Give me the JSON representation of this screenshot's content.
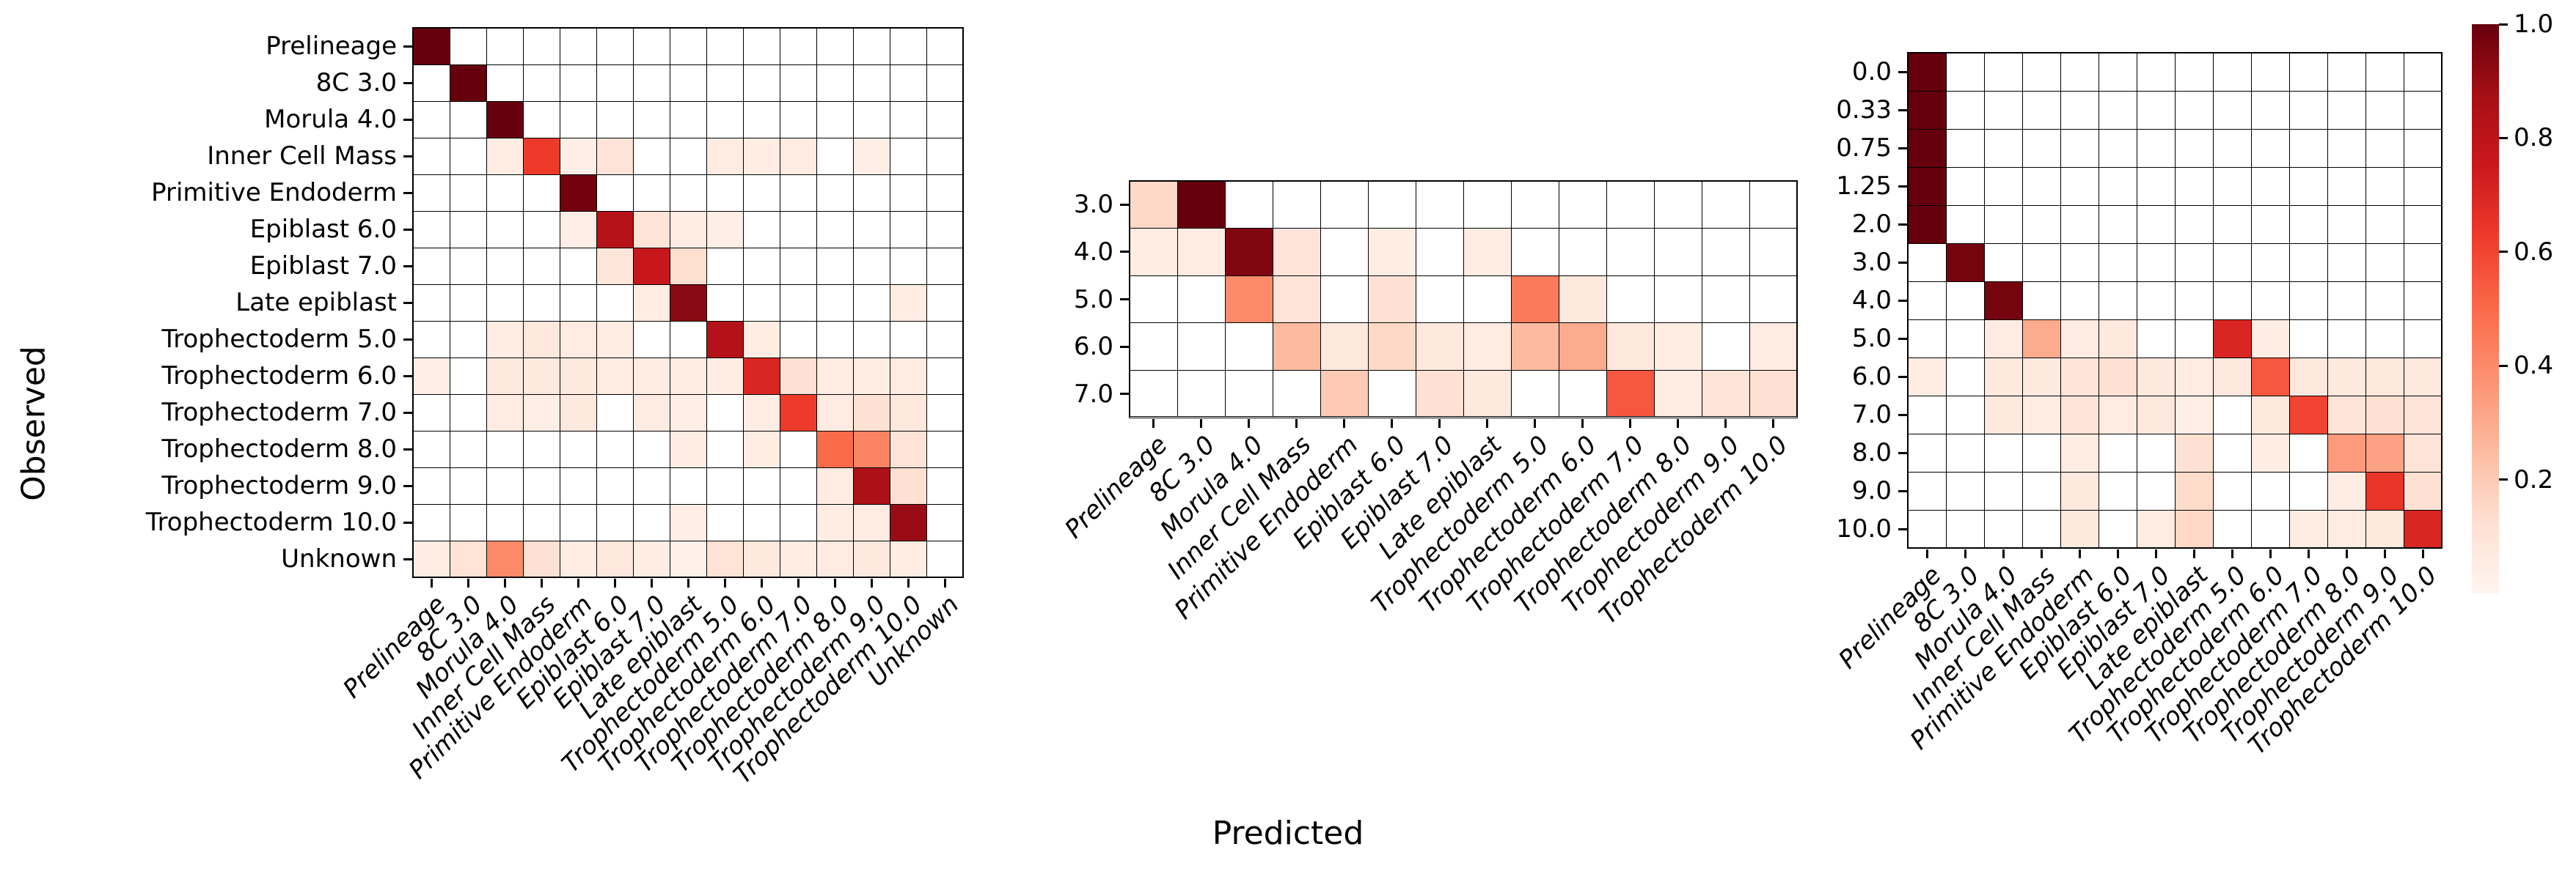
{
  "figure": {
    "xlabel": "Predicted",
    "ylabel": "Observed",
    "background": "#ffffff"
  },
  "colormap": {
    "name": "Reds",
    "zero_color": "#ffffff",
    "stops": [
      {
        "v": 0.0,
        "color": "#fff5f0"
      },
      {
        "v": 0.125,
        "color": "#fee0d2"
      },
      {
        "v": 0.25,
        "color": "#fcbba1"
      },
      {
        "v": 0.375,
        "color": "#fc9272"
      },
      {
        "v": 0.5,
        "color": "#fb6a4a"
      },
      {
        "v": 0.625,
        "color": "#ef3b2c"
      },
      {
        "v": 0.75,
        "color": "#cb181d"
      },
      {
        "v": 0.875,
        "color": "#a50f15"
      },
      {
        "v": 1.0,
        "color": "#67000d"
      }
    ]
  },
  "colorbar": {
    "vmin": 0,
    "vmax": 1,
    "tick_labels": [
      "1.0",
      "0.8",
      "0.6",
      "0.4",
      "0.2"
    ],
    "tick_values": [
      1.0,
      0.8,
      0.6,
      0.4,
      0.2
    ]
  },
  "chart_data": [
    {
      "type": "heatmap",
      "name": "confusion-matrix-all-lineages",
      "x_labels": [
        "Prelineage",
        "8C 3.0",
        "Morula 4.0",
        "Inner Cell Mass",
        "Primitive Endoderm",
        "Epiblast 6.0",
        "Epiblast 7.0",
        "Late epiblast",
        "Trophectoderm 5.0",
        "Trophectoderm 6.0",
        "Trophectoderm 7.0",
        "Trophectoderm 8.0",
        "Trophectoderm 9.0",
        "Trophectoderm 10.0",
        "Unknown"
      ],
      "y_labels": [
        "Prelineage",
        "8C 3.0",
        "Morula 4.0",
        "Inner Cell Mass",
        "Primitive Endoderm",
        "Epiblast 6.0",
        "Epiblast 7.0",
        "Late epiblast",
        "Trophectoderm 5.0",
        "Trophectoderm 6.0",
        "Trophectoderm 7.0",
        "Trophectoderm 8.0",
        "Trophectoderm 9.0",
        "Trophectoderm 10.0",
        "Unknown"
      ],
      "values": [
        [
          1,
          0,
          0,
          0,
          0,
          0,
          0,
          0,
          0,
          0,
          0,
          0,
          0,
          0,
          0
        ],
        [
          0,
          1,
          0,
          0,
          0,
          0,
          0,
          0,
          0,
          0,
          0,
          0,
          0,
          0,
          0
        ],
        [
          0,
          0,
          1,
          0,
          0,
          0,
          0,
          0,
          0,
          0,
          0,
          0,
          0,
          0,
          0
        ],
        [
          0,
          0,
          0.05,
          0.63,
          0.04,
          0.1,
          0,
          0,
          0.06,
          0.05,
          0.06,
          0,
          0.04,
          0,
          0
        ],
        [
          0,
          0,
          0,
          0,
          0.98,
          0,
          0,
          0,
          0,
          0,
          0,
          0,
          0,
          0,
          0
        ],
        [
          0,
          0,
          0,
          0,
          0.04,
          0.82,
          0.11,
          0.05,
          0.04,
          0,
          0,
          0,
          0,
          0,
          0
        ],
        [
          0,
          0,
          0,
          0,
          0,
          0.09,
          0.77,
          0.13,
          0,
          0,
          0,
          0,
          0,
          0,
          0
        ],
        [
          0,
          0,
          0,
          0,
          0,
          0,
          0.05,
          0.93,
          0,
          0,
          0,
          0,
          0,
          0.05,
          0
        ],
        [
          0,
          0,
          0.05,
          0.08,
          0.06,
          0.05,
          0,
          0,
          0.83,
          0.05,
          0,
          0,
          0,
          0,
          0
        ],
        [
          0.04,
          0,
          0.07,
          0.07,
          0.07,
          0.06,
          0.06,
          0.05,
          0.05,
          0.7,
          0.12,
          0.06,
          0.05,
          0.06,
          0
        ],
        [
          0,
          0,
          0.06,
          0.04,
          0.07,
          0,
          0.06,
          0.04,
          0,
          0.05,
          0.63,
          0.06,
          0.12,
          0.08,
          0
        ],
        [
          0,
          0,
          0,
          0,
          0,
          0,
          0,
          0.05,
          0,
          0.05,
          0,
          0.5,
          0.42,
          0.1,
          0
        ],
        [
          0,
          0,
          0,
          0,
          0,
          0,
          0,
          0,
          0,
          0,
          0,
          0.06,
          0.85,
          0.12,
          0
        ],
        [
          0,
          0,
          0,
          0,
          0,
          0,
          0,
          0.04,
          0,
          0,
          0,
          0.05,
          0.06,
          0.9,
          0
        ],
        [
          0.05,
          0.11,
          0.4,
          0.12,
          0.05,
          0.08,
          0.05,
          0.03,
          0.11,
          0.07,
          0.05,
          0.06,
          0.07,
          0.05,
          0
        ]
      ]
    },
    {
      "type": "heatmap",
      "name": "confusion-matrix-stage",
      "x_labels": [
        "Prelineage",
        "8C 3.0",
        "Morula 4.0",
        "Inner Cell Mass",
        "Primitive Endoderm",
        "Epiblast 6.0",
        "Epiblast 7.0",
        "Late epiblast",
        "Trophectoderm 5.0",
        "Trophectoderm 6.0",
        "Trophectoderm 7.0",
        "Trophectoderm 8.0",
        "Trophectoderm 9.0",
        "Trophectoderm 10.0"
      ],
      "y_labels": [
        "3.0",
        "4.0",
        "5.0",
        "6.0",
        "7.0"
      ],
      "values": [
        [
          0.15,
          1,
          0,
          0,
          0,
          0,
          0,
          0,
          0,
          0,
          0,
          0,
          0,
          0
        ],
        [
          0.05,
          0.06,
          0.95,
          0.1,
          0,
          0.05,
          0,
          0.05,
          0,
          0,
          0,
          0,
          0,
          0
        ],
        [
          0,
          0,
          0.4,
          0.1,
          0,
          0.12,
          0,
          0,
          0.45,
          0.07,
          0,
          0,
          0,
          0
        ],
        [
          0,
          0,
          0,
          0.25,
          0.08,
          0.15,
          0.08,
          0.06,
          0.25,
          0.3,
          0.08,
          0.05,
          0,
          0.06
        ],
        [
          0,
          0,
          0,
          0,
          0.2,
          0,
          0.12,
          0.07,
          0,
          0,
          0.55,
          0.05,
          0.1,
          0.12
        ]
      ]
    },
    {
      "type": "heatmap",
      "name": "confusion-matrix-timepoint",
      "x_labels": [
        "Prelineage",
        "8C 3.0",
        "Morula 4.0",
        "Inner Cell Mass",
        "Primitive Endoderm",
        "Epiblast 6.0",
        "Epiblast 7.0",
        "Late epiblast",
        "Trophectoderm 5.0",
        "Trophectoderm 6.0",
        "Trophectoderm 7.0",
        "Trophectoderm 8.0",
        "Trophectoderm 9.0",
        "Trophectoderm 10.0"
      ],
      "y_labels": [
        "0.0",
        "0.33",
        "0.75",
        "1.25",
        "2.0",
        "3.0",
        "4.0",
        "5.0",
        "6.0",
        "7.0",
        "8.0",
        "9.0",
        "10.0"
      ],
      "values": [
        [
          1,
          0,
          0,
          0,
          0,
          0,
          0,
          0,
          0,
          0,
          0,
          0,
          0,
          0
        ],
        [
          1,
          0,
          0,
          0,
          0,
          0,
          0,
          0,
          0,
          0,
          0,
          0,
          0,
          0
        ],
        [
          1,
          0,
          0,
          0,
          0,
          0,
          0,
          0,
          0,
          0,
          0,
          0,
          0,
          0
        ],
        [
          1,
          0,
          0,
          0,
          0,
          0,
          0,
          0,
          0,
          0,
          0,
          0,
          0,
          0
        ],
        [
          1,
          0,
          0,
          0,
          0,
          0,
          0,
          0,
          0,
          0,
          0,
          0,
          0,
          0
        ],
        [
          0,
          0.97,
          0,
          0,
          0,
          0,
          0,
          0,
          0,
          0,
          0,
          0,
          0,
          0
        ],
        [
          0,
          0,
          0.97,
          0,
          0,
          0,
          0,
          0,
          0,
          0,
          0,
          0,
          0,
          0
        ],
        [
          0,
          0,
          0.06,
          0.3,
          0.06,
          0.07,
          0,
          0,
          0.7,
          0.05,
          0,
          0,
          0,
          0
        ],
        [
          0.05,
          0,
          0.07,
          0.07,
          0.1,
          0.12,
          0.07,
          0.06,
          0.08,
          0.55,
          0.08,
          0.07,
          0.07,
          0.07
        ],
        [
          0,
          0,
          0.07,
          0.06,
          0.1,
          0.06,
          0.08,
          0.04,
          0,
          0.08,
          0.6,
          0.1,
          0.12,
          0.1
        ],
        [
          0,
          0,
          0,
          0,
          0.05,
          0,
          0,
          0.12,
          0,
          0.05,
          0,
          0.35,
          0.33,
          0.1
        ],
        [
          0,
          0,
          0,
          0,
          0.07,
          0,
          0,
          0.14,
          0,
          0,
          0,
          0.05,
          0.65,
          0.12
        ],
        [
          0,
          0,
          0,
          0,
          0.07,
          0,
          0.06,
          0.15,
          0,
          0,
          0.05,
          0.06,
          0.07,
          0.7
        ]
      ]
    }
  ]
}
